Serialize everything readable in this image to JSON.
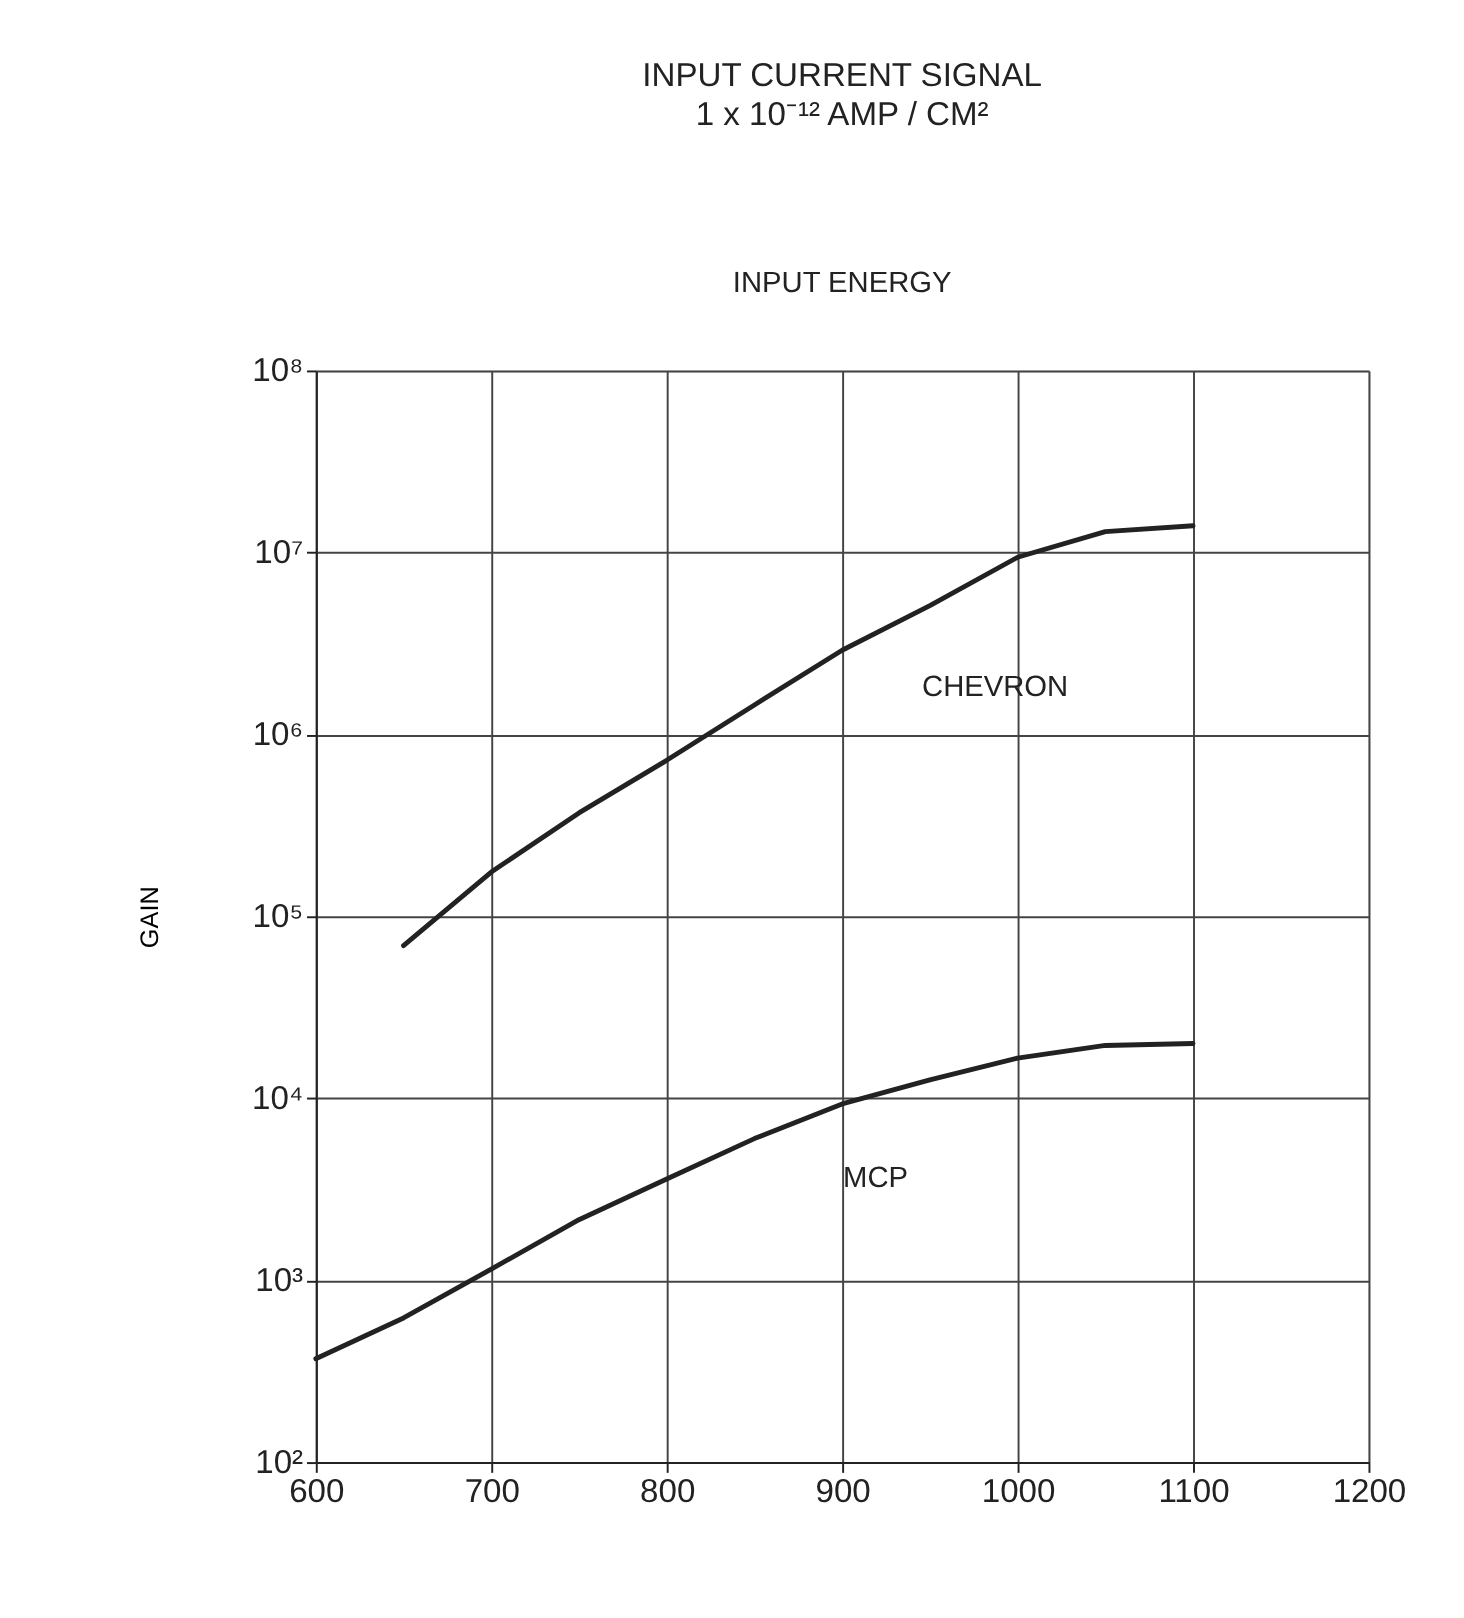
{
  "chart_data": {
    "type": "line",
    "title": "INPUT CURRENT SIGNAL",
    "subtitle": "1 x 10⁻¹² AMP / CM²",
    "ylabel": "GAIN",
    "log": "y",
    "grid": true,
    "marker": "none",
    "line_style": "solid",
    "xlim": [
      600,
      1200
    ],
    "xticks": [
      600,
      700,
      800,
      900,
      1000,
      1100,
      1200
    ],
    "ylim": [
      100,
      100000000
    ],
    "yticks": [
      {
        "value": 100,
        "label": "10²"
      },
      {
        "value": 1000,
        "label": "10³"
      },
      {
        "value": 10000,
        "label": "10⁴"
      },
      {
        "value": 100000,
        "label": "10⁵"
      },
      {
        "value": 1000000,
        "label": "10⁶"
      },
      {
        "value": 10000000,
        "label": "10⁷"
      },
      {
        "value": 100000000,
        "label": "10⁸"
      }
    ],
    "series": [
      {
        "color": "#222222",
        "x": [
          650,
          700,
          750,
          800,
          850,
          900,
          950,
          1000,
          1050,
          1100
        ],
        "values": [
          69000,
          175000,
          370000,
          720000,
          1450000,
          2900000,
          5100000,
          9400000,
          13000000,
          14000000
        ]
      },
      {
        "color": "#222222",
        "x": [
          600,
          650,
          700,
          750,
          800,
          850,
          900,
          950,
          1000,
          1050,
          1100
        ],
        "values": [
          370,
          620,
          1150,
          2150,
          3600,
          6000,
          9300,
          12600,
          16600,
          19500,
          20000
        ]
      }
    ],
    "annotations": [
      "INPUT ENERGY",
      {
        "text": "CHEVRON",
        "x": 910,
        "y": 3500000
      },
      {
        "text": "MCP",
        "x": 865,
        "y": 7000
      }
    ]
  }
}
